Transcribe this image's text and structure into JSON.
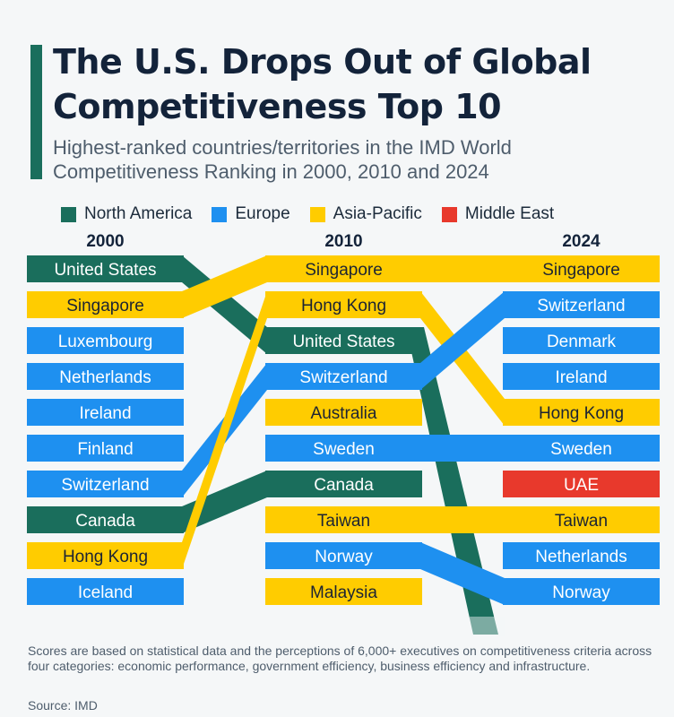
{
  "header": {
    "title": "The U.S. Drops Out of Global Competitiveness Top 10",
    "subtitle": "Highest-ranked countries/territories in the IMD World Competitiveness Ranking in 2000, 2010 and 2024"
  },
  "legend": [
    {
      "label": "North America",
      "color": "#1a6e5c"
    },
    {
      "label": "Europe",
      "color": "#1e90f0"
    },
    {
      "label": "Asia-Pacific",
      "color": "#ffcc00"
    },
    {
      "label": "Middle East",
      "color": "#e8392c"
    }
  ],
  "chart_data": {
    "type": "table",
    "title": "The U.S. Drops Out of Global Competitiveness Top 10",
    "years": [
      "2000",
      "2010",
      "2024"
    ],
    "rankings": {
      "2000": [
        {
          "rank": 1,
          "name": "United States",
          "region": "North America"
        },
        {
          "rank": 2,
          "name": "Singapore",
          "region": "Asia-Pacific"
        },
        {
          "rank": 3,
          "name": "Luxembourg",
          "region": "Europe"
        },
        {
          "rank": 4,
          "name": "Netherlands",
          "region": "Europe"
        },
        {
          "rank": 5,
          "name": "Ireland",
          "region": "Europe"
        },
        {
          "rank": 6,
          "name": "Finland",
          "region": "Europe"
        },
        {
          "rank": 7,
          "name": "Switzerland",
          "region": "Europe"
        },
        {
          "rank": 8,
          "name": "Canada",
          "region": "North America"
        },
        {
          "rank": 9,
          "name": "Hong Kong",
          "region": "Asia-Pacific"
        },
        {
          "rank": 10,
          "name": "Iceland",
          "region": "Europe"
        }
      ],
      "2010": [
        {
          "rank": 1,
          "name": "Singapore",
          "region": "Asia-Pacific"
        },
        {
          "rank": 2,
          "name": "Hong Kong",
          "region": "Asia-Pacific"
        },
        {
          "rank": 3,
          "name": "United States",
          "region": "North America"
        },
        {
          "rank": 4,
          "name": "Switzerland",
          "region": "Europe"
        },
        {
          "rank": 5,
          "name": "Australia",
          "region": "Asia-Pacific"
        },
        {
          "rank": 6,
          "name": "Sweden",
          "region": "Europe"
        },
        {
          "rank": 7,
          "name": "Canada",
          "region": "North America"
        },
        {
          "rank": 8,
          "name": "Taiwan",
          "region": "Asia-Pacific"
        },
        {
          "rank": 9,
          "name": "Norway",
          "region": "Europe"
        },
        {
          "rank": 10,
          "name": "Malaysia",
          "region": "Asia-Pacific"
        }
      ],
      "2024": [
        {
          "rank": 1,
          "name": "Singapore",
          "region": "Asia-Pacific"
        },
        {
          "rank": 2,
          "name": "Switzerland",
          "region": "Europe"
        },
        {
          "rank": 3,
          "name": "Denmark",
          "region": "Europe"
        },
        {
          "rank": 4,
          "name": "Ireland",
          "region": "Europe"
        },
        {
          "rank": 5,
          "name": "Hong Kong",
          "region": "Asia-Pacific"
        },
        {
          "rank": 6,
          "name": "Sweden",
          "region": "Europe"
        },
        {
          "rank": 7,
          "name": "UAE",
          "region": "Middle East"
        },
        {
          "rank": 8,
          "name": "Taiwan",
          "region": "Asia-Pacific"
        },
        {
          "rank": 9,
          "name": "Netherlands",
          "region": "Europe"
        },
        {
          "rank": 10,
          "name": "Norway",
          "region": "Europe"
        }
      ]
    }
  },
  "footer": {
    "note": "Scores are based on statistical data and the perceptions of 6,000+ executives on competitiveness criteria across four categories: economic performance, government efficiency, business efficiency and infrastructure.",
    "source": "Source: IMD"
  }
}
